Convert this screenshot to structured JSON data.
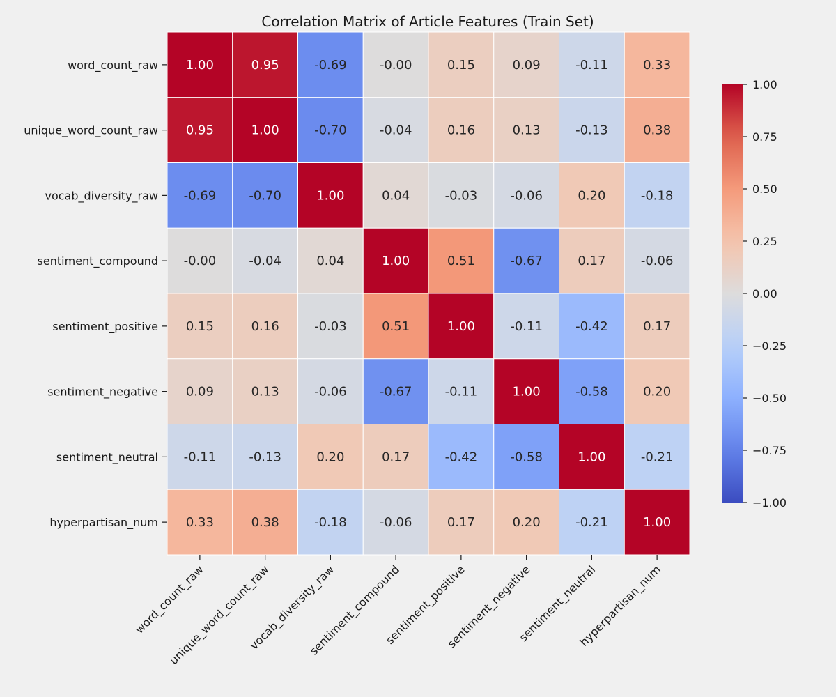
{
  "chart_data": {
    "type": "heatmap",
    "title": "Correlation Matrix of Article Features (Train Set)",
    "row_labels": [
      "word_count_raw",
      "unique_word_count_raw",
      "vocab_diversity_raw",
      "sentiment_compound",
      "sentiment_positive",
      "sentiment_negative",
      "sentiment_neutral",
      "hyperpartisan_num"
    ],
    "col_labels": [
      "word_count_raw",
      "unique_word_count_raw",
      "vocab_diversity_raw",
      "sentiment_compound",
      "sentiment_positive",
      "sentiment_negative",
      "sentiment_neutral",
      "hyperpartisan_num"
    ],
    "values": [
      [
        1.0,
        0.95,
        -0.69,
        -0.0,
        0.15,
        0.09,
        -0.11,
        0.33
      ],
      [
        0.95,
        1.0,
        -0.7,
        -0.04,
        0.16,
        0.13,
        -0.13,
        0.38
      ],
      [
        -0.69,
        -0.7,
        1.0,
        0.04,
        -0.03,
        -0.06,
        0.2,
        -0.18
      ],
      [
        -0.0,
        -0.04,
        0.04,
        1.0,
        0.51,
        -0.67,
        0.17,
        -0.06
      ],
      [
        0.15,
        0.16,
        -0.03,
        0.51,
        1.0,
        -0.11,
        -0.42,
        0.17
      ],
      [
        0.09,
        0.13,
        -0.06,
        -0.67,
        -0.11,
        1.0,
        -0.58,
        0.2
      ],
      [
        -0.11,
        -0.13,
        0.2,
        0.17,
        -0.42,
        -0.58,
        1.0,
        -0.21
      ],
      [
        0.33,
        0.38,
        -0.18,
        -0.06,
        0.17,
        0.2,
        -0.21,
        1.0
      ]
    ],
    "cell_labels": [
      [
        "1.00",
        "0.95",
        "-0.69",
        "-0.00",
        "0.15",
        "0.09",
        "-0.11",
        "0.33"
      ],
      [
        "0.95",
        "1.00",
        "-0.70",
        "-0.04",
        "0.16",
        "0.13",
        "-0.13",
        "0.38"
      ],
      [
        "-0.69",
        "-0.70",
        "1.00",
        "0.04",
        "-0.03",
        "-0.06",
        "0.20",
        "-0.18"
      ],
      [
        "-0.00",
        "-0.04",
        "0.04",
        "1.00",
        "0.51",
        "-0.67",
        "0.17",
        "-0.06"
      ],
      [
        "0.15",
        "0.16",
        "-0.03",
        "0.51",
        "1.00",
        "-0.11",
        "-0.42",
        "0.17"
      ],
      [
        "0.09",
        "0.13",
        "-0.06",
        "-0.67",
        "-0.11",
        "1.00",
        "-0.58",
        "0.20"
      ],
      [
        "-0.11",
        "-0.13",
        "0.20",
        "0.17",
        "-0.42",
        "-0.58",
        "1.00",
        "-0.21"
      ],
      [
        "0.33",
        "0.38",
        "-0.18",
        "-0.06",
        "0.17",
        "0.20",
        "-0.21",
        "1.00"
      ]
    ],
    "colormap": "coolwarm",
    "vmin": -1.0,
    "vmax": 1.0,
    "colorbar_ticks": [
      1.0,
      0.75,
      0.5,
      0.25,
      0.0,
      -0.25,
      -0.5,
      -0.75,
      -1.0
    ],
    "colorbar_tick_labels": [
      "1.00",
      "0.75",
      "0.50",
      "0.25",
      "0.00",
      "−0.25",
      "−0.50",
      "−0.75",
      "−1.00"
    ],
    "grid": false,
    "colorbar_placement": "right"
  }
}
